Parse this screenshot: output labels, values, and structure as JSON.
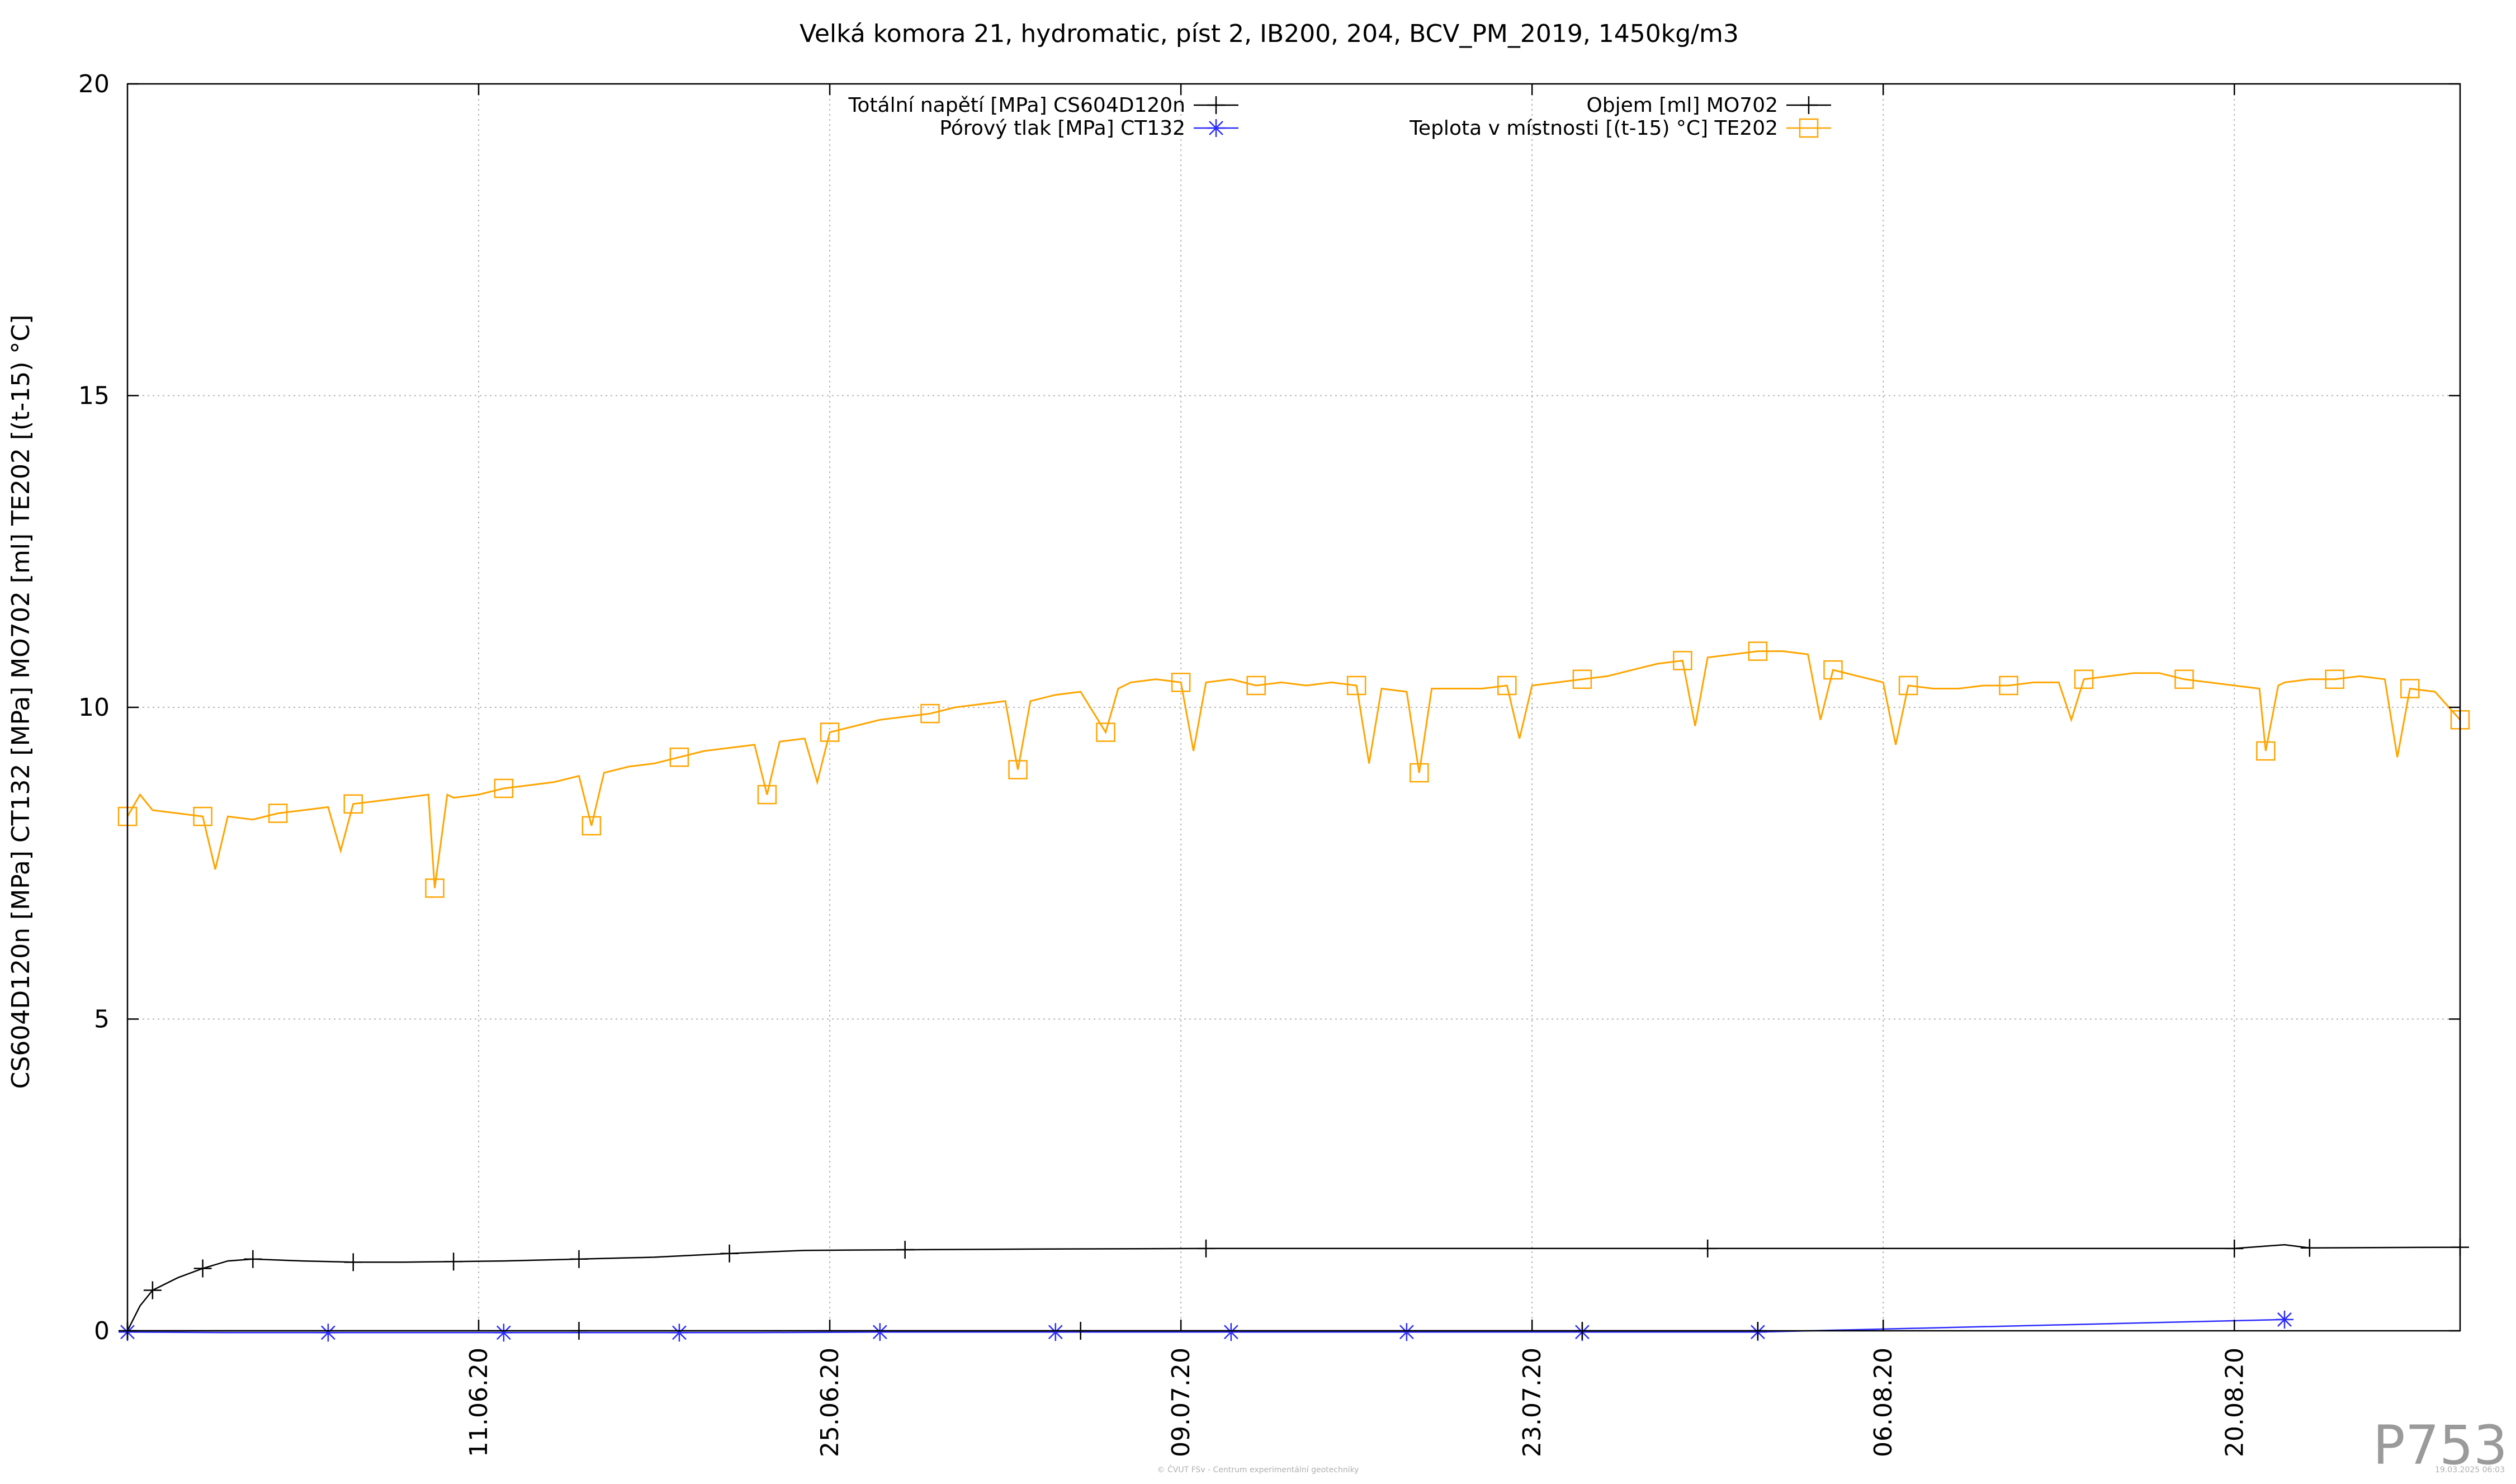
{
  "chart_data": {
    "type": "line",
    "title": "Velká komora 21, hydromatic, píst 2, IB200, 204, BCV_PM_2019, 1450kg/m3",
    "ylabel": "CS604D120n [MPa] CT132 [MPa] MO702 [ml] TE202 [(t-15) °C]",
    "xlabel": "",
    "xlim": [
      "2020-05-28",
      "2020-08-29"
    ],
    "ylim": [
      0,
      20
    ],
    "yticks": [
      0,
      5,
      10,
      15,
      20
    ],
    "xticks": [
      "11.06.20",
      "25.06.20",
      "09.07.20",
      "23.07.20",
      "06.08.20",
      "20.08.20"
    ],
    "xtick_dates": [
      "2020-06-11",
      "2020-06-25",
      "2020-07-09",
      "2020-07-23",
      "2020-08-06",
      "2020-08-20"
    ],
    "grid": true,
    "legend_placement": "top",
    "series": [
      {
        "name": "Totální napětí [MPa] CS604D120n",
        "color": "#000000",
        "marker": "plus",
        "points": [
          [
            "2020-05-28",
            0.0
          ],
          [
            "2020-05-28T12:00",
            0.4
          ],
          [
            "2020-05-29",
            0.65
          ],
          [
            "2020-05-30",
            0.85
          ],
          [
            "2020-05-31",
            1.0
          ],
          [
            "2020-06-01",
            1.12
          ],
          [
            "2020-06-02",
            1.15
          ],
          [
            "2020-06-04",
            1.12
          ],
          [
            "2020-06-06",
            1.1
          ],
          [
            "2020-06-08",
            1.1
          ],
          [
            "2020-06-10",
            1.11
          ],
          [
            "2020-06-12",
            1.12
          ],
          [
            "2020-06-15",
            1.15
          ],
          [
            "2020-06-18",
            1.18
          ],
          [
            "2020-06-21",
            1.24
          ],
          [
            "2020-06-24",
            1.29
          ],
          [
            "2020-06-28",
            1.3
          ],
          [
            "2020-07-03",
            1.31
          ],
          [
            "2020-07-10",
            1.32
          ],
          [
            "2020-07-20",
            1.32
          ],
          [
            "2020-07-30",
            1.32
          ],
          [
            "2020-08-10",
            1.32
          ],
          [
            "2020-08-20",
            1.32
          ],
          [
            "2020-08-22",
            1.38
          ],
          [
            "2020-08-23",
            1.33
          ],
          [
            "2020-08-29",
            1.34
          ]
        ]
      },
      {
        "name": "Pórový tlak [MPa] CT132",
        "color": "#2b2bff",
        "marker": "asterisk",
        "points": [
          [
            "2020-05-28",
            -0.02
          ],
          [
            "2020-06-01",
            -0.03
          ],
          [
            "2020-06-05",
            -0.03
          ],
          [
            "2020-06-08",
            -0.03
          ],
          [
            "2020-06-12",
            -0.03
          ],
          [
            "2020-06-15",
            -0.03
          ],
          [
            "2020-06-19",
            -0.03
          ],
          [
            "2020-06-22",
            -0.03
          ],
          [
            "2020-06-27",
            -0.02
          ],
          [
            "2020-07-01",
            -0.02
          ],
          [
            "2020-07-04",
            -0.02
          ],
          [
            "2020-07-08",
            -0.02
          ],
          [
            "2020-07-11",
            -0.02
          ],
          [
            "2020-07-15",
            -0.02
          ],
          [
            "2020-07-18",
            -0.02
          ],
          [
            "2020-07-22",
            -0.02
          ],
          [
            "2020-07-25",
            -0.02
          ],
          [
            "2020-07-28",
            -0.02
          ],
          [
            "2020-08-01",
            -0.02
          ],
          [
            "2020-08-22",
            0.18
          ]
        ]
      },
      {
        "name": "Objem [ml] MO702",
        "color": "#000000",
        "marker": "plus",
        "points": [
          [
            "2020-05-28",
            0.0
          ],
          [
            "2020-06-05",
            0.0
          ],
          [
            "2020-06-15",
            0.0
          ],
          [
            "2020-06-25",
            0.0
          ],
          [
            "2020-07-05",
            0.0
          ],
          [
            "2020-07-15",
            0.0
          ],
          [
            "2020-07-25",
            0.0
          ],
          [
            "2020-08-01",
            0.0
          ]
        ]
      },
      {
        "name": "Teplota v místnosti [(t-15) °C] TE202",
        "color": "#ffa500",
        "marker": "square",
        "points": [
          [
            "2020-05-28",
            8.25
          ],
          [
            "2020-05-28T12:00",
            8.6
          ],
          [
            "2020-05-29",
            8.35
          ],
          [
            "2020-05-30",
            8.3
          ],
          [
            "2020-05-31",
            8.25
          ],
          [
            "2020-05-31T12:00",
            7.4
          ],
          [
            "2020-06-01",
            8.25
          ],
          [
            "2020-06-02",
            8.2
          ],
          [
            "2020-06-03",
            8.3
          ],
          [
            "2020-06-04",
            8.35
          ],
          [
            "2020-06-05",
            8.4
          ],
          [
            "2020-06-05T12:00",
            7.7
          ],
          [
            "2020-06-06",
            8.45
          ],
          [
            "2020-06-07",
            8.5
          ],
          [
            "2020-06-08",
            8.55
          ],
          [
            "2020-06-09",
            8.6
          ],
          [
            "2020-06-09T06:00",
            7.1
          ],
          [
            "2020-06-09T18:00",
            8.6
          ],
          [
            "2020-06-10",
            8.55
          ],
          [
            "2020-06-11",
            8.6
          ],
          [
            "2020-06-12",
            8.7
          ],
          [
            "2020-06-13",
            8.75
          ],
          [
            "2020-06-14",
            8.8
          ],
          [
            "2020-06-15",
            8.9
          ],
          [
            "2020-06-15T12:00",
            8.1
          ],
          [
            "2020-06-16",
            8.95
          ],
          [
            "2020-06-17",
            9.05
          ],
          [
            "2020-06-18",
            9.1
          ],
          [
            "2020-06-19",
            9.2
          ],
          [
            "2020-06-20",
            9.3
          ],
          [
            "2020-06-21",
            9.35
          ],
          [
            "2020-06-22",
            9.4
          ],
          [
            "2020-06-22T12:00",
            8.6
          ],
          [
            "2020-06-23",
            9.45
          ],
          [
            "2020-06-24",
            9.5
          ],
          [
            "2020-06-24T12:00",
            8.8
          ],
          [
            "2020-06-25",
            9.6
          ],
          [
            "2020-06-26",
            9.7
          ],
          [
            "2020-06-27",
            9.8
          ],
          [
            "2020-06-28",
            9.85
          ],
          [
            "2020-06-29",
            9.9
          ],
          [
            "2020-06-30",
            10.0
          ],
          [
            "2020-07-01",
            10.05
          ],
          [
            "2020-07-02",
            10.1
          ],
          [
            "2020-07-02T12:00",
            9.0
          ],
          [
            "2020-07-03",
            10.1
          ],
          [
            "2020-07-04",
            10.2
          ],
          [
            "2020-07-05",
            10.25
          ],
          [
            "2020-07-06",
            9.6
          ],
          [
            "2020-07-06T12:00",
            10.3
          ],
          [
            "2020-07-07",
            10.4
          ],
          [
            "2020-07-08",
            10.45
          ],
          [
            "2020-07-09",
            10.4
          ],
          [
            "2020-07-09T12:00",
            9.3
          ],
          [
            "2020-07-10",
            10.4
          ],
          [
            "2020-07-11",
            10.45
          ],
          [
            "2020-07-12",
            10.35
          ],
          [
            "2020-07-13",
            10.4
          ],
          [
            "2020-07-14",
            10.35
          ],
          [
            "2020-07-15",
            10.4
          ],
          [
            "2020-07-16",
            10.35
          ],
          [
            "2020-07-16T12:00",
            9.1
          ],
          [
            "2020-07-17",
            10.3
          ],
          [
            "2020-07-18",
            10.25
          ],
          [
            "2020-07-18T12:00",
            8.95
          ],
          [
            "2020-07-19",
            10.3
          ],
          [
            "2020-07-20",
            10.3
          ],
          [
            "2020-07-21",
            10.3
          ],
          [
            "2020-07-22",
            10.35
          ],
          [
            "2020-07-22T12:00",
            9.5
          ],
          [
            "2020-07-23",
            10.35
          ],
          [
            "2020-07-24",
            10.4
          ],
          [
            "2020-07-25",
            10.45
          ],
          [
            "2020-07-26",
            10.5
          ],
          [
            "2020-07-27",
            10.6
          ],
          [
            "2020-07-28",
            10.7
          ],
          [
            "2020-07-29",
            10.75
          ],
          [
            "2020-07-29T12:00",
            9.7
          ],
          [
            "2020-07-30",
            10.8
          ],
          [
            "2020-07-31",
            10.85
          ],
          [
            "2020-08-01",
            10.9
          ],
          [
            "2020-08-02",
            10.9
          ],
          [
            "2020-08-03",
            10.85
          ],
          [
            "2020-08-03T12:00",
            9.8
          ],
          [
            "2020-08-04",
            10.6
          ],
          [
            "2020-08-05",
            10.5
          ],
          [
            "2020-08-06",
            10.4
          ],
          [
            "2020-08-06T12:00",
            9.4
          ],
          [
            "2020-08-07",
            10.35
          ],
          [
            "2020-08-08",
            10.3
          ],
          [
            "2020-08-09",
            10.3
          ],
          [
            "2020-08-10",
            10.35
          ],
          [
            "2020-08-11",
            10.35
          ],
          [
            "2020-08-12",
            10.4
          ],
          [
            "2020-08-13",
            10.4
          ],
          [
            "2020-08-13T12:00",
            9.8
          ],
          [
            "2020-08-14",
            10.45
          ],
          [
            "2020-08-15",
            10.5
          ],
          [
            "2020-08-16",
            10.55
          ],
          [
            "2020-08-17",
            10.55
          ],
          [
            "2020-08-18",
            10.45
          ],
          [
            "2020-08-19",
            10.4
          ],
          [
            "2020-08-20",
            10.35
          ],
          [
            "2020-08-21",
            10.3
          ],
          [
            "2020-08-21T06:00",
            9.3
          ],
          [
            "2020-08-21T18:00",
            10.35
          ],
          [
            "2020-08-22",
            10.4
          ],
          [
            "2020-08-23",
            10.45
          ],
          [
            "2020-08-24",
            10.45
          ],
          [
            "2020-08-25",
            10.5
          ],
          [
            "2020-08-26",
            10.45
          ],
          [
            "2020-08-26T12:00",
            9.2
          ],
          [
            "2020-08-27",
            10.3
          ],
          [
            "2020-08-28",
            10.25
          ],
          [
            "2020-08-29",
            9.8
          ]
        ]
      }
    ]
  },
  "watermark": "P753",
  "footer": {
    "credit": "© ČVUT FSv - Centrum experimentální geotechniky",
    "timestamp": "19.03.2025 06:03"
  }
}
